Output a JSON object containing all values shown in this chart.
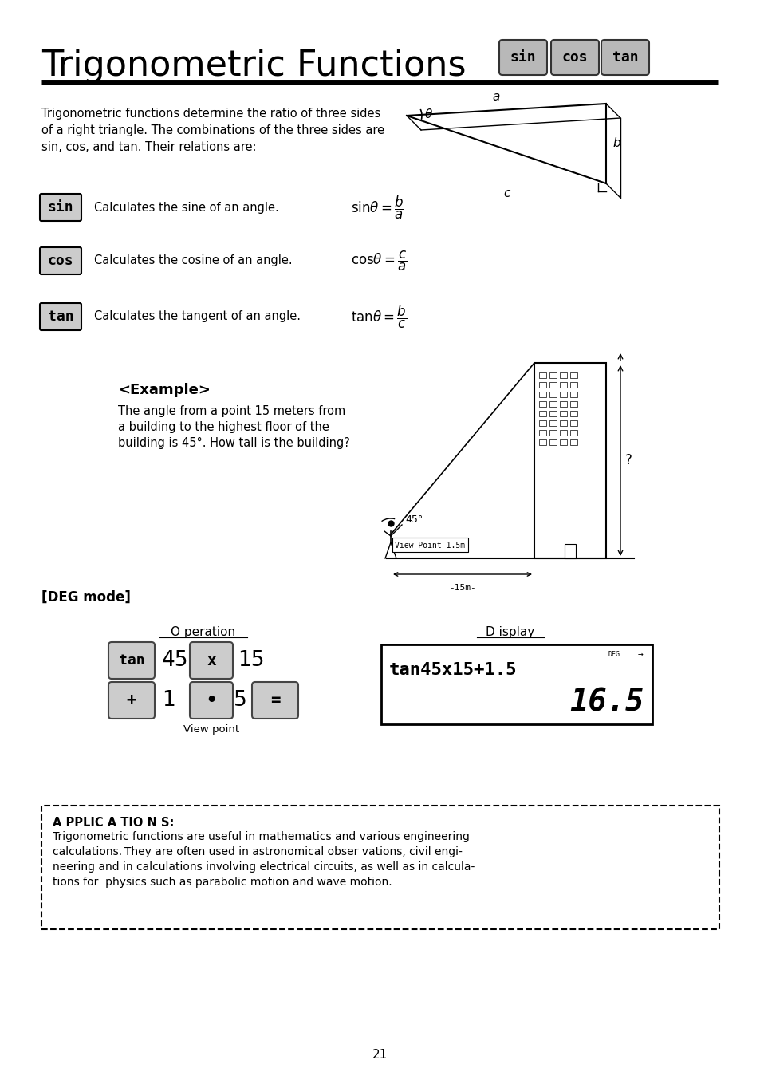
{
  "title": "Trigonometric Functions",
  "bg_color": "#ffffff",
  "page_number": "21",
  "intro_text": "Trigonometric functions determine the ratio of three sides\nof a right triangle. The combinations of the three sides are\nsin, cos, and tan. Their relations are:",
  "sin_desc": "Calculates the sine of an angle.",
  "cos_desc": "Calculates the cosine of an angle.",
  "tan_desc": "Calculates the tangent of an angle.",
  "example_title": "<Example>",
  "example_text": "The angle from a point 15 meters from\na building to the highest floor of the\nbuilding is 45°. How tall is the building?",
  "deg_mode": "[DEG mode]",
  "operation_label": "O peration",
  "display_label": "D isplay",
  "display_line1": "tan45x15+1.5",
  "display_line2": "16.5",
  "applications_title": "A PPLIC A TIO N S:",
  "applications_text1": "Trigonometric functions are useful in mathematics and various engineering",
  "applications_text2": "calculations. They are often used in astronomical obser vations, civil engi-",
  "applications_text3": "neering and in calculations involving electrical circuits, as well as in calcula-",
  "applications_text4": "tions for  physics such as parabolic motion and wave motion.",
  "button_color": "#cccccc"
}
